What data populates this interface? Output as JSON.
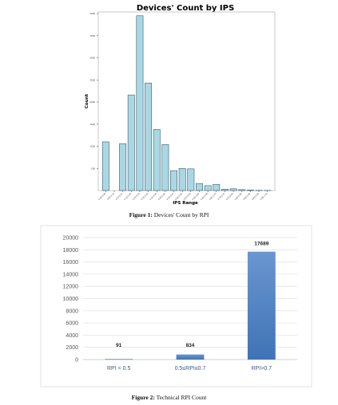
{
  "chart_data": [
    {
      "type": "bar",
      "title": "Devices' Count by IPS",
      "xlabel": "IPS Range",
      "ylabel": "Count",
      "ylim": [
        0,
        4000
      ],
      "y_ticks": [
        500,
        1000,
        1500,
        2000,
        2500,
        3000,
        3500,
        4000
      ],
      "categories": [
        "0.00-0.05",
        "0.05-0.10",
        "0.10-0.15",
        "0.15-0.20",
        "0.20-0.25",
        "0.25-0.30",
        "0.30-0.35",
        "0.35-0.40",
        "0.40-0.45",
        "0.45-0.50",
        "0.50-0.55",
        "0.55-0.60",
        "0.60-0.65",
        "0.65-0.70",
        "0.70-0.75",
        "0.75-0.80",
        "0.80-0.85",
        "0.85-0.90",
        "0.90-0.95",
        "0.95-1.00"
      ],
      "values": [
        1100,
        0,
        1060,
        2160,
        3950,
        2430,
        1380,
        1040,
        450,
        500,
        490,
        160,
        110,
        140,
        30,
        40,
        20,
        10,
        5,
        3
      ],
      "bar_color": "#a9d8e4",
      "grid": false
    },
    {
      "type": "bar",
      "categories": [
        "RPI < 0.5",
        "0.5≤RPI≤0.7",
        "RPI>0.7"
      ],
      "values": [
        91,
        834,
        17689
      ],
      "data_labels": [
        "91",
        "834",
        "17689"
      ],
      "ylim": [
        0,
        20000
      ],
      "y_ticks": [
        0,
        2000,
        4000,
        6000,
        8000,
        10000,
        12000,
        14000,
        16000,
        18000,
        20000
      ],
      "bar_color_top": "#6a96cf",
      "bar_color_bottom": "#3f73b6",
      "grid": true
    }
  ],
  "captions": {
    "fig1_label": "Figure 1:",
    "fig1_text": " Devices' Count by RPI",
    "fig2_label": "Figure 2:",
    "fig2_text": " Technical RPI Count"
  }
}
